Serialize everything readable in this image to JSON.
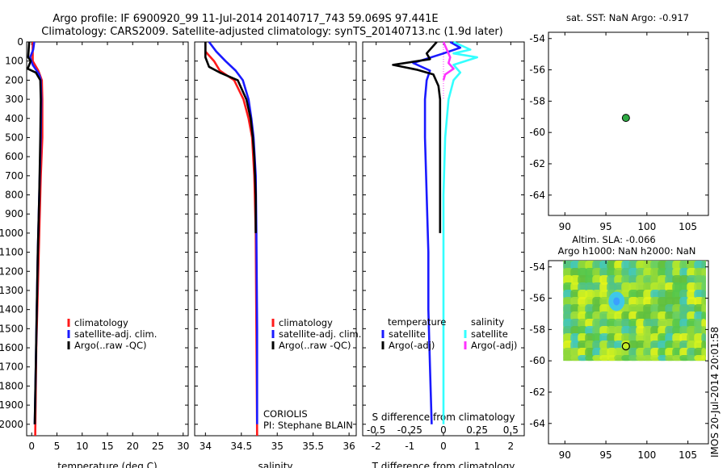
{
  "header": {
    "title_line1": "Argo profile: IF 6900920_99 11-Jul-2014 20140717_743 59.069S 97.441E",
    "title_line2": "Climatology: CARS2009. Satellite-adjusted climatology: synTS_20140713.nc (1.9d later)"
  },
  "stamp": "IMOS 20-Jul-2014 20:01:58",
  "colors": {
    "climatology": "#ff1a1a",
    "satellite": "#1a1aff",
    "argo": "#000000",
    "cyan": "#33ffff",
    "magenta": "#ff33ff",
    "dot_green": "#2eaa44"
  },
  "chart_data": [
    {
      "type": "line",
      "id": "temperature",
      "xlabel": "temperature (deg C)",
      "xlim": [
        -1,
        31
      ],
      "xticks": [
        0,
        5,
        10,
        15,
        20,
        25,
        30
      ],
      "ylim": [
        2060,
        0
      ],
      "yticks": [
        0,
        100,
        200,
        300,
        400,
        500,
        600,
        700,
        800,
        900,
        1000,
        1100,
        1200,
        1300,
        1400,
        1500,
        1600,
        1700,
        1800,
        1900,
        2000
      ],
      "legend": [
        "climatology",
        "satellite-adj. clim.",
        "Argo(..raw -QC)"
      ],
      "series": [
        {
          "name": "climatology",
          "color": "#ff1a1a",
          "depth": [
            0,
            100,
            150,
            200,
            300,
            500,
            700,
            1000,
            1300,
            1600,
            2060
          ],
          "values": [
            0.2,
            0.2,
            1.3,
            2.0,
            2.1,
            2.1,
            1.8,
            1.5,
            1.2,
            0.9,
            0.7
          ]
        },
        {
          "name": "satellite-adj. clim.",
          "color": "#1a1aff",
          "depth": [
            0,
            40,
            80,
            120,
            170,
            200,
            300,
            500,
            800,
            1100,
            1400,
            1700,
            2000
          ],
          "values": [
            0.5,
            0.3,
            -0.3,
            0.2,
            1.5,
            1.8,
            1.9,
            1.8,
            1.5,
            1.2,
            1.0,
            0.8,
            0.6
          ]
        },
        {
          "name": "Argo(..raw -QC)",
          "color": "#000000",
          "depth": [
            0,
            80,
            100,
            140,
            160,
            200,
            300,
            500,
            800,
            1100,
            1400,
            1700,
            2000
          ],
          "values": [
            -0.5,
            -0.7,
            -0.2,
            -0.8,
            0.8,
            1.7,
            1.8,
            1.7,
            1.5,
            1.2,
            1.0,
            0.8,
            0.6
          ]
        }
      ]
    },
    {
      "type": "line",
      "id": "salinity",
      "xlabel": "salinity",
      "xlim": [
        33.85,
        36.1
      ],
      "xticks": [
        34,
        34.5,
        35,
        35.5,
        36
      ],
      "ylim": [
        2060,
        0
      ],
      "legend": [
        "climatology",
        "satellite-adj. clim.",
        "Argo(..raw -QC)"
      ],
      "annotations": [
        "CORIOLIS",
        "PI: Stephane BLAIN"
      ],
      "series": [
        {
          "name": "climatology",
          "color": "#ff1a1a",
          "depth": [
            0,
            50,
            100,
            150,
            200,
            300,
            400,
            500,
            700,
            1000,
            1500,
            2060
          ],
          "values": [
            34.0,
            34.0,
            34.12,
            34.2,
            34.4,
            34.53,
            34.6,
            34.65,
            34.68,
            34.7,
            34.71,
            34.72
          ]
        },
        {
          "name": "satellite-adj. clim.",
          "color": "#1a1aff",
          "depth": [
            0,
            50,
            100,
            150,
            200,
            300,
            400,
            500,
            700,
            1000,
            1500,
            2000
          ],
          "values": [
            34.05,
            34.15,
            34.28,
            34.42,
            34.52,
            34.6,
            34.64,
            34.67,
            34.7,
            34.71,
            34.72,
            34.72
          ]
        },
        {
          "name": "Argo(..raw -QC)",
          "color": "#000000",
          "depth": [
            0,
            80,
            130,
            160,
            200,
            300,
            400,
            500,
            600,
            800,
            1000
          ],
          "values": [
            34.0,
            34.0,
            34.05,
            34.2,
            34.45,
            34.57,
            34.63,
            34.66,
            34.68,
            34.7,
            34.7
          ]
        }
      ]
    },
    {
      "type": "line",
      "id": "difference",
      "xlabel": "T difference from climatology",
      "xlabel_top": "S difference from climatology",
      "xlim": [
        -2.4,
        2.4
      ],
      "xticks": [
        -2,
        -1,
        0,
        1,
        2
      ],
      "xticks_salinity": [
        -0.5,
        -0.25,
        0,
        0.25,
        0.5
      ],
      "ylim": [
        2060,
        0
      ],
      "legend_temperature_title": "temperature",
      "legend_salinity_title": "salinity",
      "legend_temperature": [
        "satellite",
        "Argo(-adj)"
      ],
      "legend_salinity": [
        "satellite",
        "Argo(-adj)"
      ],
      "series": [
        {
          "name": "satellite",
          "group": "temperature",
          "color": "#1a1aff",
          "depth": [
            0,
            30,
            60,
            110,
            150,
            200,
            300,
            500,
            800,
            1100,
            1400,
            1700,
            2000
          ],
          "values": [
            0.2,
            0.5,
            0.0,
            -0.9,
            -0.4,
            -0.5,
            -0.55,
            -0.55,
            -0.5,
            -0.45,
            -0.45,
            -0.4,
            -0.35
          ]
        },
        {
          "name": "Argo(-adj)",
          "group": "temperature",
          "color": "#000000",
          "depth": [
            0,
            60,
            90,
            120,
            145,
            170,
            230,
            300,
            500,
            700,
            850,
            1000
          ],
          "values": [
            -0.2,
            -0.5,
            -0.4,
            -1.5,
            -0.8,
            -0.3,
            -0.15,
            -0.1,
            -0.1,
            -0.1,
            -0.1,
            -0.1
          ]
        },
        {
          "name": "satellite",
          "group": "salinity",
          "color": "#33ffff",
          "depth": [
            0,
            40,
            60,
            80,
            120,
            160,
            200,
            300,
            500,
            800,
            1100,
            1400,
            1700,
            2000
          ],
          "values": [
            0.3,
            0.8,
            0.3,
            1.0,
            0.3,
            0.5,
            0.3,
            0.15,
            0.05,
            0.0,
            0.0,
            0.0,
            0.0,
            0.0
          ]
        },
        {
          "name": "Argo(-adj)",
          "group": "salinity",
          "color": "#ff33ff",
          "depth": [
            0,
            80,
            110,
            140,
            170,
            200
          ],
          "values": [
            0.0,
            0.2,
            0.15,
            0.3,
            0.05,
            0.0
          ]
        }
      ]
    },
    {
      "type": "scatter",
      "id": "sst_map",
      "title": "sat. SST: NaN Argo: -0.917",
      "xlim": [
        88,
        107.5
      ],
      "ylim": [
        -65.3,
        -53.6
      ],
      "xticks": [
        90,
        95,
        100,
        105
      ],
      "yticks": [
        -54,
        -56,
        -58,
        -60,
        -62,
        -64
      ],
      "points": [
        {
          "lon": 97.44,
          "lat": -59.07
        }
      ]
    },
    {
      "type": "heatmap",
      "id": "sla_map",
      "title_line1": "Altim. SLA: -0.066",
      "title_line2": "Argo h1000: NaN h2000: NaN",
      "xlim": [
        88,
        107.5
      ],
      "ylim": [
        -65.3,
        -53.6
      ],
      "xticks": [
        90,
        95,
        100,
        105
      ],
      "yticks": [
        -54,
        -56,
        -58,
        -60,
        -62,
        -64
      ],
      "field_lon": [
        89.8,
        107.2
      ],
      "field_lat": [
        -60.0,
        -53.6
      ],
      "points": [
        {
          "lon": 97.44,
          "lat": -59.07
        }
      ]
    }
  ]
}
